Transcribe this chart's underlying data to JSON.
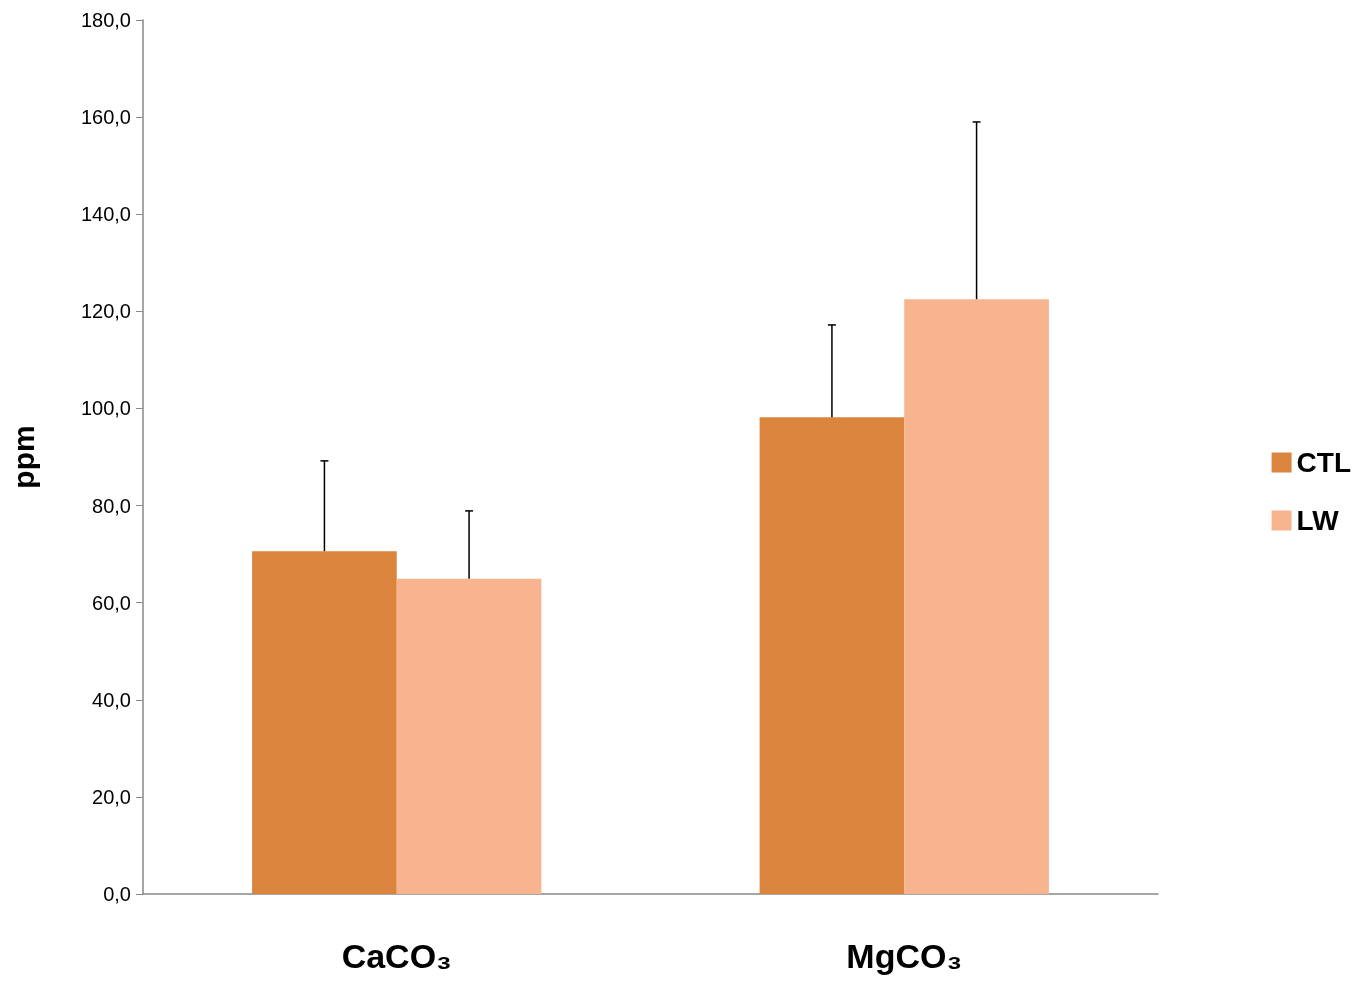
{
  "chart_data": {
    "type": "bar",
    "ylabel": "ppm",
    "categories": [
      "CaCO₃",
      "MgCO₃"
    ],
    "series": [
      {
        "name": "CTL",
        "color": "#db843d",
        "values": [
          70.6,
          98.2
        ],
        "errors": [
          [
            70.6,
            89.2
          ],
          [
            98.2,
            117.2
          ]
        ]
      },
      {
        "name": "LW",
        "color": "#f8b48f",
        "values": [
          64.9,
          122.5
        ],
        "errors": [
          [
            64.9,
            78.9
          ],
          [
            122.5,
            159.0
          ]
        ]
      }
    ],
    "ylim": [
      0,
      180
    ],
    "yticks": [
      {
        "value": 0,
        "label": "0,0"
      },
      {
        "value": 20,
        "label": "20,0"
      },
      {
        "value": 40,
        "label": "40,0"
      },
      {
        "value": 60,
        "label": "60,0"
      },
      {
        "value": 80,
        "label": "80,0"
      },
      {
        "value": 100,
        "label": "100,0"
      },
      {
        "value": 120,
        "label": "120,0"
      },
      {
        "value": 140,
        "label": "140,0"
      },
      {
        "value": 160,
        "label": "160,0"
      },
      {
        "value": 180,
        "label": "180,0"
      }
    ],
    "grid": false,
    "legend": "right"
  }
}
